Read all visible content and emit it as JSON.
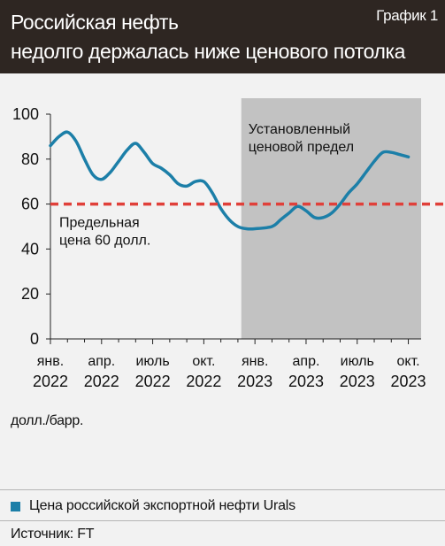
{
  "header": {
    "title_line1": "Российская нефть",
    "title_line2": "недолго держалась ниже ценового потолка",
    "chart_label": "График 1"
  },
  "colors": {
    "header_bg": "#2e2622",
    "page_bg": "#f2f2f2",
    "shaded_region": "#c2c2c2",
    "series_line": "#1c7fa8",
    "threshold_line": "#e0403a"
  },
  "chart_data": {
    "type": "line",
    "title": "",
    "xlabel": "",
    "ylabel": "долл./барр.",
    "ylim": [
      0,
      100
    ],
    "yticks": [
      "0",
      "20",
      "40",
      "60",
      "80",
      "100"
    ],
    "xtick_labels": [
      [
        "янв.",
        "2022"
      ],
      [
        "апр.",
        "2022"
      ],
      [
        "июль",
        "2022"
      ],
      [
        "окт.",
        "2022"
      ],
      [
        "янв.",
        "2023"
      ],
      [
        "апр.",
        "2023"
      ],
      [
        "июль",
        "2023"
      ],
      [
        "окт.",
        "2023"
      ]
    ],
    "x_range_months": [
      0,
      21.75
    ],
    "shaded_region": {
      "from_month": 11.2,
      "to_month": 21.75,
      "label_line1": "Установленный",
      "label_line2": "ценовой предел"
    },
    "threshold": {
      "value": 60,
      "label_line1": "Предельная",
      "label_line2": "цена 60 долл."
    },
    "series": [
      {
        "name": "Цена российской экспортной нефти Urals",
        "points": [
          [
            0,
            86
          ],
          [
            0.5,
            90
          ],
          [
            1.0,
            92
          ],
          [
            1.5,
            88
          ],
          [
            2.0,
            80
          ],
          [
            2.5,
            73
          ],
          [
            3.0,
            71
          ],
          [
            3.5,
            74
          ],
          [
            4.0,
            79
          ],
          [
            4.5,
            84
          ],
          [
            5.0,
            87
          ],
          [
            5.5,
            83
          ],
          [
            6.0,
            78
          ],
          [
            6.5,
            76
          ],
          [
            7.0,
            73
          ],
          [
            7.5,
            69
          ],
          [
            8.0,
            68
          ],
          [
            8.5,
            70
          ],
          [
            9.0,
            70
          ],
          [
            9.5,
            65
          ],
          [
            10.0,
            58
          ],
          [
            10.5,
            53
          ],
          [
            11.0,
            50
          ],
          [
            11.5,
            49
          ],
          [
            12.0,
            49
          ],
          [
            13.0,
            50
          ],
          [
            13.5,
            53
          ],
          [
            14.0,
            56
          ],
          [
            14.5,
            59
          ],
          [
            15.0,
            57
          ],
          [
            15.5,
            54
          ],
          [
            16.0,
            54
          ],
          [
            16.5,
            56
          ],
          [
            17.0,
            60
          ],
          [
            17.5,
            65
          ],
          [
            18.0,
            69
          ],
          [
            18.5,
            74
          ],
          [
            19.0,
            79
          ],
          [
            19.5,
            83
          ],
          [
            20.0,
            83
          ],
          [
            20.5,
            82
          ],
          [
            21.0,
            81
          ]
        ]
      }
    ]
  },
  "legend": {
    "label": "Цена российской экспортной нефти Urals"
  },
  "source": {
    "label": "Источник: FT"
  }
}
